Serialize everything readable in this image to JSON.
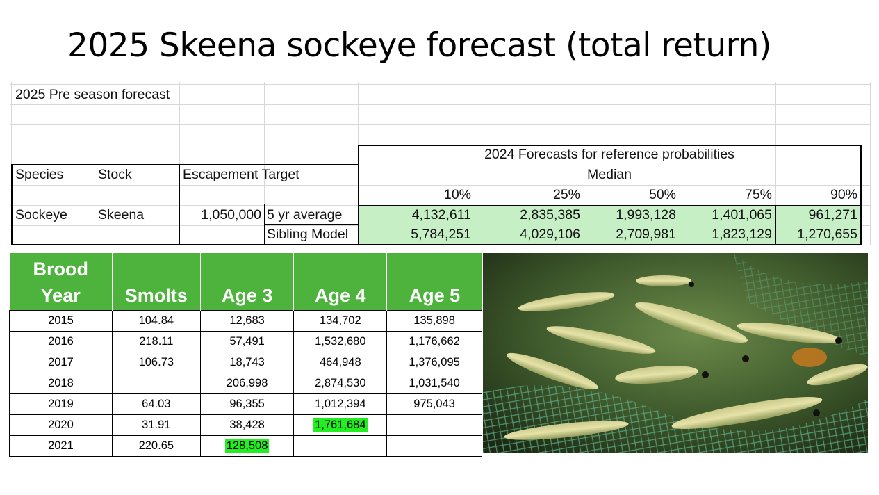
{
  "title": "2025 Skeena sockeye forecast (total return)",
  "sheet": {
    "preseason": "2025 Pre season forecast",
    "group_header": "2024 Forecasts for reference probabilities",
    "median": "Median",
    "col_species": "Species",
    "col_stock": "Stock",
    "col_esc": "Escapement Target",
    "percentiles": [
      "10%",
      "25%",
      "50%",
      "75%",
      "90%"
    ],
    "species": "Sockeye",
    "stock": "Skeena",
    "esc_target": "1,050,000",
    "rows": [
      {
        "label": "5 yr average",
        "values": [
          "4,132,611",
          "2,835,385",
          "1,993,128",
          "1,401,065",
          "961,271"
        ]
      },
      {
        "label": "Sibling Model",
        "values": [
          "5,784,251",
          "4,029,106",
          "2,709,981",
          "1,823,129",
          "1,270,655"
        ]
      }
    ]
  },
  "brood_table": {
    "headers": [
      "Brood Year",
      "Smolts",
      "Age 3",
      "Age 4",
      "Age 5"
    ],
    "rows": [
      [
        "2015",
        "104.84",
        "12,683",
        "134,702",
        "135,898"
      ],
      [
        "2016",
        "218.11",
        "57,491",
        "1,532,680",
        "1,176,662"
      ],
      [
        "2017",
        "106.73",
        "18,743",
        "464,948",
        "1,376,095"
      ],
      [
        "2018",
        "",
        "206,998",
        "2,874,530",
        "1,031,540"
      ],
      [
        "2019",
        "64.03",
        "96,355",
        "1,012,394",
        "975,043"
      ],
      [
        "2020",
        "31.91",
        "38,428",
        "1,761,684",
        ""
      ],
      [
        "2021",
        "220.65",
        "128,508",
        "",
        ""
      ]
    ]
  },
  "colors": {
    "header_green": "#4db33d",
    "highlight_green": "#22ee22",
    "forecast_cell_green": "#c6efc6"
  }
}
